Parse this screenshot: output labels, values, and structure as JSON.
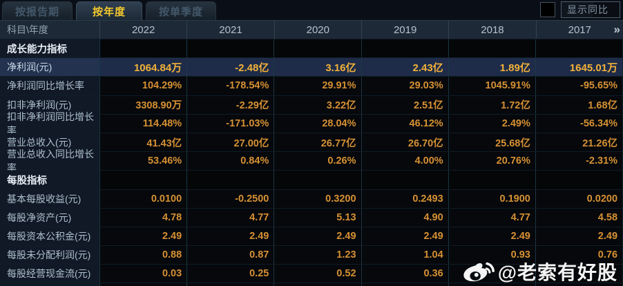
{
  "tabs": [
    {
      "id": "by-report-period",
      "label": "按报告期",
      "active": false
    },
    {
      "id": "by-year",
      "label": "按年度",
      "active": true
    },
    {
      "id": "by-quarter",
      "label": "按单季度",
      "active": false
    }
  ],
  "controls": {
    "yoy_checkbox_checked": false,
    "show_yoy_label": "显示同比"
  },
  "table": {
    "corner_label": "科目\\年度",
    "years": [
      "2022",
      "2021",
      "2020",
      "2019",
      "2018",
      "2017"
    ],
    "more_years_icon": "»",
    "rows": [
      {
        "type": "section",
        "label": "成长能力指标",
        "values": [
          "",
          "",
          "",
          "",
          "",
          ""
        ]
      },
      {
        "type": "data",
        "highlight": true,
        "label": "净利润(元)",
        "values": [
          "1064.84万",
          "-2.48亿",
          "3.16亿",
          "2.43亿",
          "1.89亿",
          "1645.01万"
        ]
      },
      {
        "type": "data",
        "label": "净利润同比增长率",
        "values": [
          "104.29%",
          "-178.54%",
          "29.91%",
          "29.03%",
          "1045.91%",
          "-95.65%"
        ]
      },
      {
        "type": "data",
        "label": "扣非净利润(元)",
        "values": [
          "3308.90万",
          "-2.29亿",
          "3.22亿",
          "2.51亿",
          "1.72亿",
          "1.68亿"
        ]
      },
      {
        "type": "data",
        "label": "扣非净利润同比增长率",
        "values": [
          "114.48%",
          "-171.03%",
          "28.04%",
          "46.12%",
          "2.49%",
          "-56.34%"
        ]
      },
      {
        "type": "data",
        "label": "营业总收入(元)",
        "values": [
          "41.43亿",
          "27.00亿",
          "26.77亿",
          "26.70亿",
          "25.68亿",
          "21.26亿"
        ]
      },
      {
        "type": "data",
        "label": "营业总收入同比增长率",
        "values": [
          "53.46%",
          "0.84%",
          "0.26%",
          "4.00%",
          "20.76%",
          "-2.31%"
        ]
      },
      {
        "type": "section",
        "label": "每股指标",
        "values": [
          "",
          "",
          "",
          "",
          "",
          ""
        ]
      },
      {
        "type": "data",
        "label": "基本每股收益(元)",
        "values": [
          "0.0100",
          "-0.2500",
          "0.3200",
          "0.2493",
          "0.1900",
          "0.0200"
        ]
      },
      {
        "type": "data",
        "label": "每股净资产(元)",
        "values": [
          "4.78",
          "4.77",
          "5.13",
          "4.90",
          "4.77",
          "4.58"
        ]
      },
      {
        "type": "data",
        "label": "每股资本公积金(元)",
        "values": [
          "2.49",
          "2.49",
          "2.49",
          "2.49",
          "2.49",
          "2.49"
        ]
      },
      {
        "type": "data",
        "label": "每股未分配利润(元)",
        "values": [
          "0.88",
          "0.87",
          "1.23",
          "1.04",
          "0.93",
          "0.76"
        ]
      },
      {
        "type": "data",
        "label": "每股经营现金流(元)",
        "values": [
          "0.03",
          "0.25",
          "0.52",
          "0.36",
          "",
          ""
        ]
      }
    ]
  },
  "watermark": {
    "icon": "weibo-logo",
    "handle": "@老索有好股"
  },
  "colors": {
    "background": "#06080c",
    "header_bg": "#1d2936",
    "highlight_row_bg": "#1e2c49",
    "value_text": "#d79134",
    "highlight_value_text": "#f2b13a",
    "active_tab_text": "#f5c92e",
    "grid_line": "#1c3745"
  }
}
